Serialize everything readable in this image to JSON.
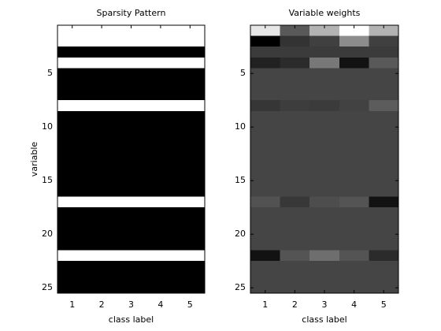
{
  "chart_data": [
    {
      "type": "heatmap",
      "title": "Sparsity Pattern",
      "x_label": "class label",
      "y_label": "variable",
      "colormap": "gray",
      "y_direction": "reverse",
      "x": [
        1,
        2,
        3,
        4,
        5
      ],
      "y": [
        1,
        2,
        3,
        4,
        5,
        6,
        7,
        8,
        9,
        10,
        11,
        12,
        13,
        14,
        15,
        16,
        17,
        18,
        19,
        20,
        21,
        22,
        23,
        24,
        25
      ],
      "xlim": [
        0.5,
        5.5
      ],
      "ylim": [
        0.5,
        25.5
      ],
      "xticks": [
        1,
        2,
        3,
        4,
        5
      ],
      "yticks": [
        5,
        10,
        15,
        20,
        25
      ],
      "values": [
        [
          1,
          1,
          1,
          1,
          1
        ],
        [
          1,
          1,
          1,
          1,
          1
        ],
        [
          0,
          0,
          0,
          0,
          0
        ],
        [
          1,
          1,
          1,
          1,
          1
        ],
        [
          0,
          0,
          0,
          0,
          0
        ],
        [
          0,
          0,
          0,
          0,
          0
        ],
        [
          0,
          0,
          0,
          0,
          0
        ],
        [
          1,
          1,
          1,
          1,
          1
        ],
        [
          0,
          0,
          0,
          0,
          0
        ],
        [
          0,
          0,
          0,
          0,
          0
        ],
        [
          0,
          0,
          0,
          0,
          0
        ],
        [
          0,
          0,
          0,
          0,
          0
        ],
        [
          0,
          0,
          0,
          0,
          0
        ],
        [
          0,
          0,
          0,
          0,
          0
        ],
        [
          0,
          0,
          0,
          0,
          0
        ],
        [
          0,
          0,
          0,
          0,
          0
        ],
        [
          1,
          1,
          1,
          1,
          1
        ],
        [
          0,
          0,
          0,
          0,
          0
        ],
        [
          0,
          0,
          0,
          0,
          0
        ],
        [
          0,
          0,
          0,
          0,
          0
        ],
        [
          0,
          0,
          0,
          0,
          0
        ],
        [
          1,
          1,
          1,
          1,
          1
        ],
        [
          0,
          0,
          0,
          0,
          0
        ],
        [
          0,
          0,
          0,
          0,
          0
        ],
        [
          0,
          0,
          0,
          0,
          0
        ]
      ]
    },
    {
      "type": "heatmap",
      "title": "Variable weights",
      "x_label": "class label",
      "colormap": "gray",
      "y_direction": "reverse",
      "x": [
        1,
        2,
        3,
        4,
        5
      ],
      "y": [
        1,
        2,
        3,
        4,
        5,
        6,
        7,
        8,
        9,
        10,
        11,
        12,
        13,
        14,
        15,
        16,
        17,
        18,
        19,
        20,
        21,
        22,
        23,
        24,
        25
      ],
      "xlim": [
        0.5,
        5.5
      ],
      "ylim": [
        0.5,
        25.5
      ],
      "xticks": [
        1,
        2,
        3,
        4,
        5
      ],
      "yticks": [
        5,
        10,
        15,
        20,
        25
      ],
      "values": [
        [
          0.9,
          0.35,
          0.7,
          1.0,
          0.7
        ],
        [
          0.0,
          0.2,
          0.25,
          0.55,
          0.25
        ],
        [
          0.23,
          0.23,
          0.23,
          0.23,
          0.23
        ],
        [
          0.13,
          0.17,
          0.47,
          0.07,
          0.35
        ],
        [
          0.27,
          0.27,
          0.27,
          0.27,
          0.27
        ],
        [
          0.27,
          0.27,
          0.27,
          0.27,
          0.27
        ],
        [
          0.27,
          0.27,
          0.27,
          0.27,
          0.27
        ],
        [
          0.21,
          0.24,
          0.23,
          0.26,
          0.36
        ],
        [
          0.27,
          0.27,
          0.27,
          0.27,
          0.27
        ],
        [
          0.27,
          0.27,
          0.27,
          0.27,
          0.27
        ],
        [
          0.27,
          0.27,
          0.27,
          0.27,
          0.27
        ],
        [
          0.27,
          0.27,
          0.27,
          0.27,
          0.27
        ],
        [
          0.27,
          0.27,
          0.27,
          0.27,
          0.27
        ],
        [
          0.27,
          0.27,
          0.27,
          0.27,
          0.27
        ],
        [
          0.27,
          0.27,
          0.27,
          0.27,
          0.27
        ],
        [
          0.27,
          0.27,
          0.27,
          0.27,
          0.27
        ],
        [
          0.32,
          0.22,
          0.3,
          0.33,
          0.07
        ],
        [
          0.27,
          0.27,
          0.27,
          0.27,
          0.27
        ],
        [
          0.27,
          0.27,
          0.27,
          0.27,
          0.27
        ],
        [
          0.27,
          0.27,
          0.27,
          0.27,
          0.27
        ],
        [
          0.27,
          0.27,
          0.27,
          0.27,
          0.27
        ],
        [
          0.07,
          0.33,
          0.43,
          0.33,
          0.17
        ],
        [
          0.27,
          0.27,
          0.27,
          0.27,
          0.27
        ],
        [
          0.27,
          0.27,
          0.27,
          0.27,
          0.27
        ],
        [
          0.27,
          0.27,
          0.27,
          0.27,
          0.27
        ]
      ]
    }
  ]
}
